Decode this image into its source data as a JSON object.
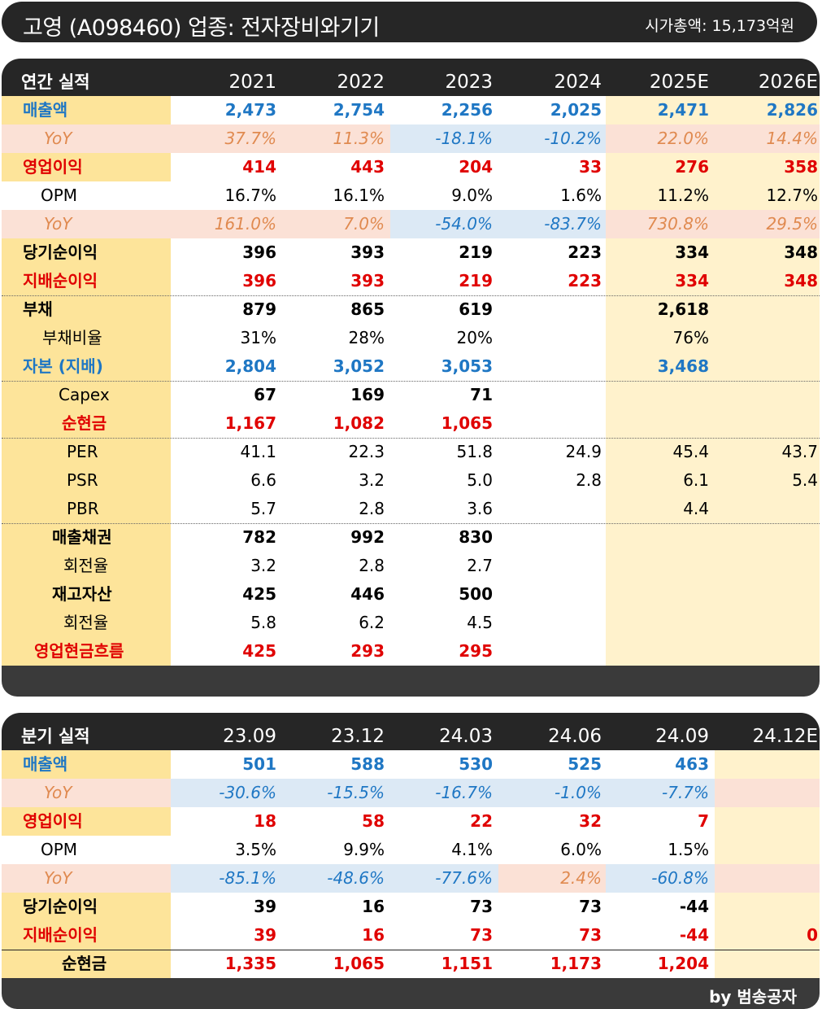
{
  "title": {
    "name": "고영 (A098460) 업종: 전자장비와기기",
    "market_cap": "시가총액: 15,173억원"
  },
  "annual": {
    "header_label": "연간 실적",
    "columns": [
      "2021",
      "2022",
      "2023",
      "2024",
      "2025E",
      "2026E"
    ],
    "rows": [
      {
        "label": "매출액",
        "values": [
          "2,473",
          "2,754",
          "2,256",
          "2,025",
          "2,471",
          "2,826"
        ]
      },
      {
        "label": "YoY",
        "values": [
          "37.7%",
          "11.3%",
          "-18.1%",
          "-10.2%",
          "22.0%",
          "14.4%"
        ]
      },
      {
        "label": "영업이익",
        "values": [
          "414",
          "443",
          "204",
          "33",
          "276",
          "358"
        ]
      },
      {
        "label": "OPM",
        "values": [
          "16.7%",
          "16.1%",
          "9.0%",
          "1.6%",
          "11.2%",
          "12.7%"
        ]
      },
      {
        "label": "YoY",
        "values": [
          "161.0%",
          "7.0%",
          "-54.0%",
          "-83.7%",
          "730.8%",
          "29.5%"
        ]
      },
      {
        "label": "당기순이익",
        "values": [
          "396",
          "393",
          "219",
          "223",
          "334",
          "348"
        ]
      },
      {
        "label": "지배순이익",
        "values": [
          "396",
          "393",
          "219",
          "223",
          "334",
          "348"
        ]
      },
      {
        "label": "부채",
        "values": [
          "879",
          "865",
          "619",
          "",
          "2,618",
          ""
        ]
      },
      {
        "label": "부채비율",
        "values": [
          "31%",
          "28%",
          "20%",
          "",
          "76%",
          ""
        ]
      },
      {
        "label": "자본 (지배)",
        "values": [
          "2,804",
          "3,052",
          "3,053",
          "",
          "3,468",
          ""
        ]
      },
      {
        "label": "Capex",
        "values": [
          "67",
          "169",
          "71",
          "",
          "",
          ""
        ]
      },
      {
        "label": "순현금",
        "values": [
          "1,167",
          "1,082",
          "1,065",
          "",
          "",
          ""
        ]
      },
      {
        "label": "PER",
        "values": [
          "41.1",
          "22.3",
          "51.8",
          "24.9",
          "45.4",
          "43.7"
        ]
      },
      {
        "label": "PSR",
        "values": [
          "6.6",
          "3.2",
          "5.0",
          "2.8",
          "6.1",
          "5.4"
        ]
      },
      {
        "label": "PBR",
        "values": [
          "5.7",
          "2.8",
          "3.6",
          "",
          "4.4",
          ""
        ]
      },
      {
        "label": "매출채권",
        "values": [
          "782",
          "992",
          "830",
          "",
          "",
          ""
        ]
      },
      {
        "label": "회전율",
        "values": [
          "3.2",
          "2.8",
          "2.7",
          "",
          "",
          ""
        ]
      },
      {
        "label": "재고자산",
        "values": [
          "425",
          "446",
          "500",
          "",
          "",
          ""
        ]
      },
      {
        "label": "회전율",
        "values": [
          "5.8",
          "6.2",
          "4.5",
          "",
          "",
          ""
        ]
      },
      {
        "label": "영업현금흐름",
        "values": [
          "425",
          "293",
          "295",
          "",
          "",
          ""
        ]
      }
    ]
  },
  "quarterly": {
    "header_label": "분기 실적",
    "columns": [
      "23.09",
      "23.12",
      "24.03",
      "24.06",
      "24.09",
      "24.12E"
    ],
    "rows": [
      {
        "label": "매출액",
        "values": [
          "501",
          "588",
          "530",
          "525",
          "463",
          ""
        ]
      },
      {
        "label": "YoY",
        "values": [
          "-30.6%",
          "-15.5%",
          "-16.7%",
          "-1.0%",
          "-7.7%",
          ""
        ]
      },
      {
        "label": "영업이익",
        "values": [
          "18",
          "58",
          "22",
          "32",
          "7",
          ""
        ]
      },
      {
        "label": "OPM",
        "values": [
          "3.5%",
          "9.9%",
          "4.1%",
          "6.0%",
          "1.5%",
          ""
        ]
      },
      {
        "label": "YoY",
        "values": [
          "-85.1%",
          "-48.6%",
          "-77.6%",
          "2.4%",
          "-60.8%",
          ""
        ]
      },
      {
        "label": "당기순이익",
        "values": [
          "39",
          "16",
          "73",
          "73",
          "-44",
          ""
        ]
      },
      {
        "label": "지배순이익",
        "values": [
          "39",
          "16",
          "73",
          "73",
          "-44",
          "0"
        ]
      },
      {
        "label": "순현금",
        "values": [
          "1,335",
          "1,065",
          "1,151",
          "1,173",
          "1,204",
          ""
        ]
      }
    ]
  },
  "footer": {
    "credit": "by 범송공자"
  },
  "colors": {
    "dark": "#262626",
    "label_yellow": "#fde49a",
    "estimate_yellow": "#fff2cc",
    "pos_yoy_bg": "#fbe1d6",
    "neg_yoy_bg": "#dce9f5",
    "blue": "#1f77c4",
    "red": "#e00000",
    "orange": "#e08a50"
  }
}
